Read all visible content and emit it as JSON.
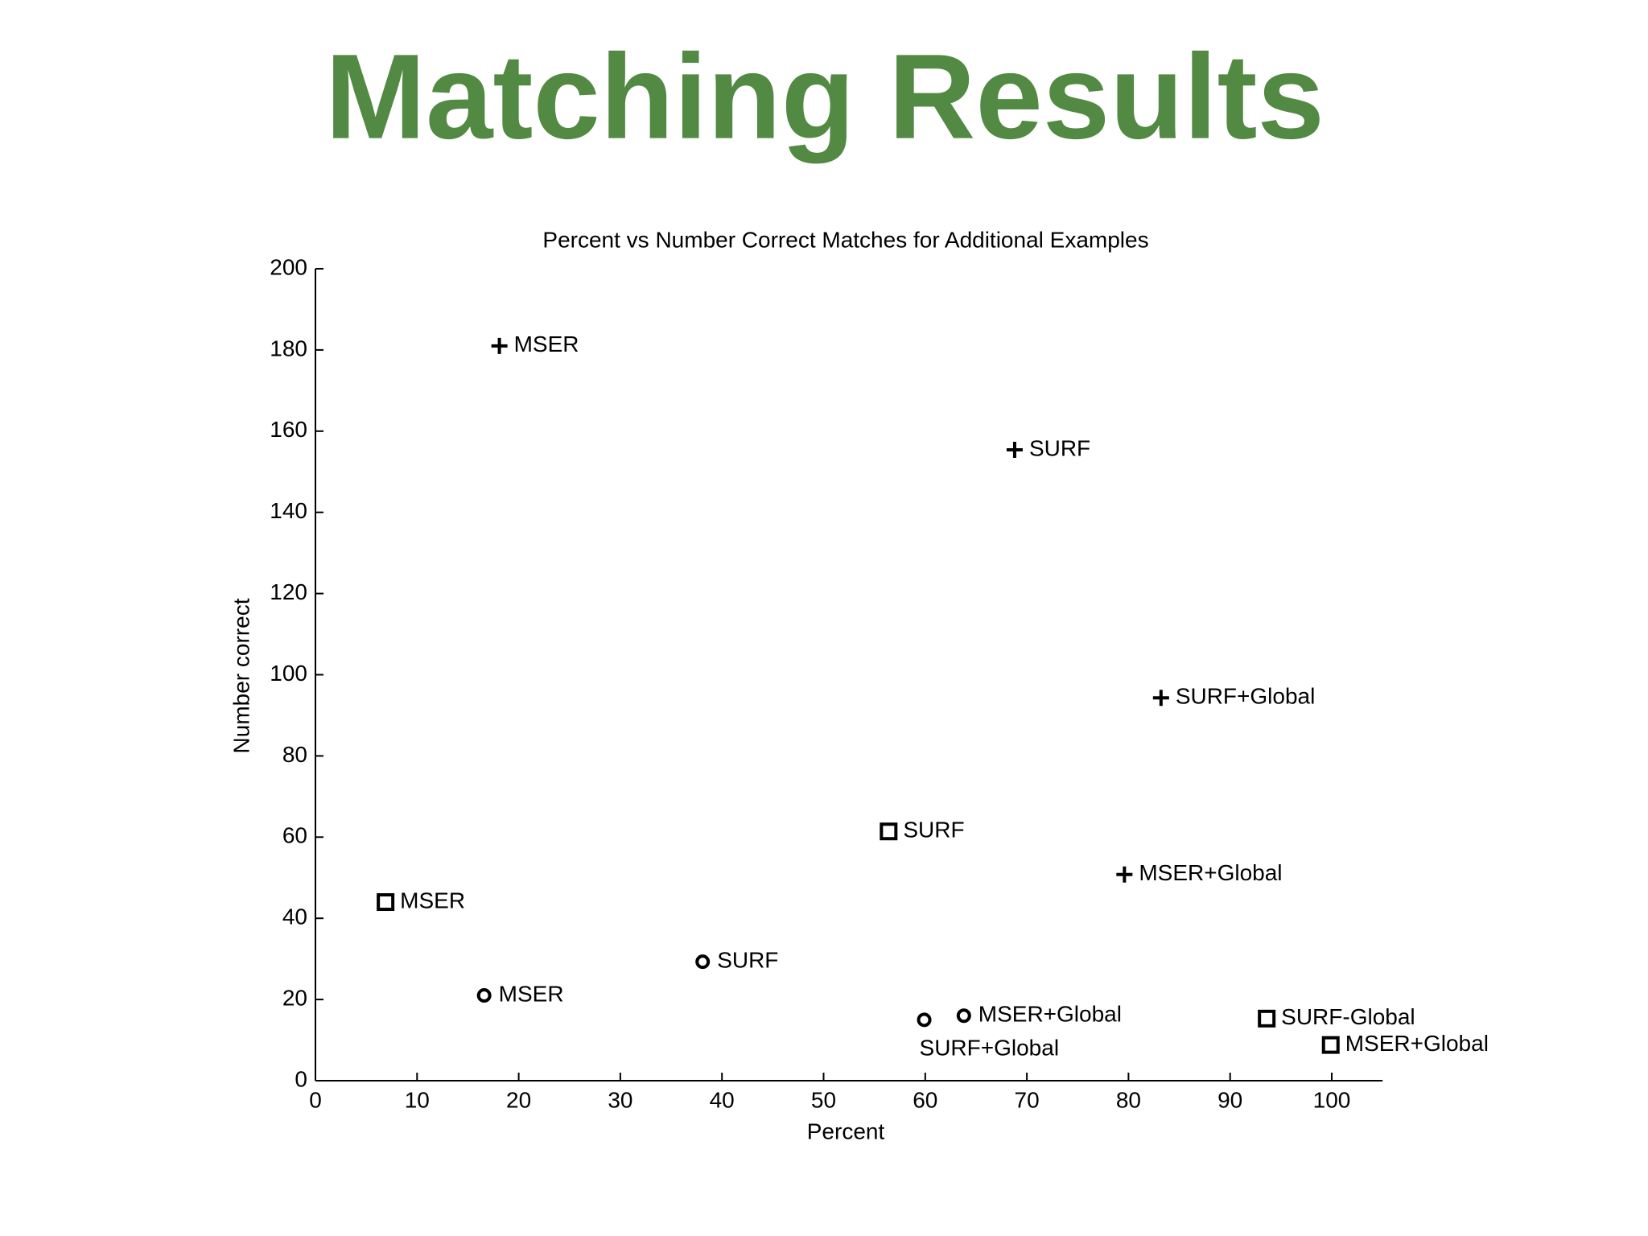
{
  "title": "Matching Results",
  "chart_data": {
    "type": "scatter",
    "title": "Percent vs Number Correct Matches for Additional Examples",
    "xlabel": "Percent",
    "ylabel": "Number correct",
    "xlim": [
      0,
      105
    ],
    "xticks": [
      0,
      10,
      20,
      30,
      40,
      50,
      60,
      70,
      80,
      90,
      100
    ],
    "ylim": [
      0,
      200
    ],
    "yticks": [
      0,
      20,
      40,
      60,
      80,
      100,
      120,
      140,
      160,
      180,
      200
    ],
    "grid": false,
    "series": [
      {
        "marker": "plus",
        "color": "#000000",
        "x": [
          18.1,
          68.8,
          83.2,
          79.6
        ],
        "y": [
          181,
          155.4,
          94.3,
          50.8
        ],
        "labels": [
          "MSER",
          "SURF",
          "SURF+Global",
          "MSER+Global"
        ]
      },
      {
        "marker": "square",
        "color": "#000000",
        "x": [
          6.9,
          56.4,
          93.6,
          99.9
        ],
        "y": [
          44,
          61.4,
          15.3,
          8.8
        ],
        "labels": [
          "MSER",
          "SURF",
          "SURF-Global",
          "MSER+Global"
        ]
      },
      {
        "marker": "circle",
        "color": "#000000",
        "x": [
          16.6,
          38.1,
          59.9,
          63.8
        ],
        "y": [
          21,
          29.3,
          15,
          16
        ],
        "labels": [
          "MSER",
          "SURF",
          "SURF+Global",
          "MSER+Global"
        ]
      }
    ]
  }
}
